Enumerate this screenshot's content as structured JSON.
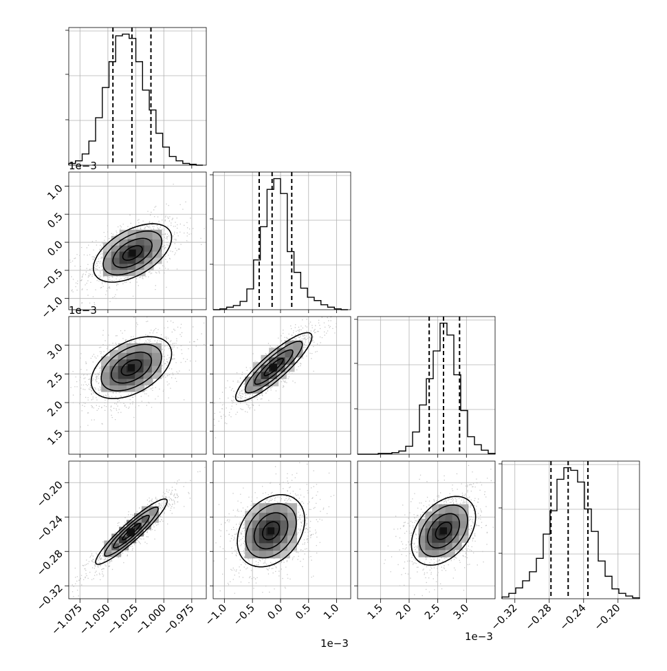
{
  "chart_data": {
    "type": "corner",
    "params": [
      {
        "range": [
          -1.085,
          -0.962
        ],
        "ticks": [
          -1.075,
          -1.05,
          -1.025,
          -1.0,
          -0.975
        ],
        "tick_labels": [
          "−1.075",
          "−1.050",
          "−1.025",
          "−1.000",
          "−0.975"
        ],
        "offset_label": ""
      },
      {
        "range": [
          -1.2,
          1.25
        ],
        "ticks": [
          -1.0,
          -0.5,
          0.0,
          0.5,
          1.0
        ],
        "tick_labels": [
          "−1.0",
          "−0.5",
          "0.0",
          "0.5",
          "1.0"
        ],
        "offset_label": "1e−3"
      },
      {
        "range": [
          1.1,
          3.5
        ],
        "ticks": [
          1.5,
          2.0,
          2.5,
          3.0
        ],
        "tick_labels": [
          "1.5",
          "2.0",
          "2.5",
          "3.0"
        ],
        "offset_label": "1e−3"
      },
      {
        "range": [
          -0.335,
          -0.175
        ],
        "ticks": [
          -0.32,
          -0.28,
          -0.24,
          -0.2
        ],
        "tick_labels": [
          "−0.32",
          "−0.28",
          "−0.24",
          "−0.20"
        ],
        "offset_label": ""
      }
    ],
    "quantiles": [
      [
        -1.0455,
        -1.0285,
        -1.0115
      ],
      [
        -0.38,
        -0.15,
        0.2
      ],
      [
        2.35,
        2.6,
        2.88
      ],
      [
        -0.278,
        -0.258,
        -0.235
      ]
    ],
    "histograms": [
      {
        "bin_edges": [
          -1.085,
          -1.079,
          -1.073,
          -1.067,
          -1.061,
          -1.055,
          -1.049,
          -1.043,
          -1.037,
          -1.031,
          -1.025,
          -1.019,
          -1.013,
          -1.007,
          -1.001,
          -0.995,
          -0.989,
          -0.983,
          -0.977,
          -0.971,
          -0.965
        ],
        "counts": [
          2,
          5,
          13,
          28,
          55,
          90,
          120,
          150,
          152,
          147,
          120,
          87,
          64,
          37,
          21,
          10,
          5,
          2,
          1,
          0
        ]
      },
      {
        "bin_edges": [
          -1.2,
          -1.08,
          -0.96,
          -0.84,
          -0.72,
          -0.6,
          -0.48,
          -0.36,
          -0.24,
          -0.12,
          0.0,
          0.12,
          0.24,
          0.36,
          0.48,
          0.6,
          0.72,
          0.84,
          0.96,
          1.08,
          1.2
        ],
        "counts": [
          0,
          1,
          3,
          5,
          10,
          25,
          60,
          100,
          145,
          158,
          140,
          70,
          45,
          26,
          15,
          11,
          6,
          3,
          1,
          0
        ]
      },
      {
        "bin_edges": [
          1.1,
          1.22,
          1.34,
          1.46,
          1.58,
          1.7,
          1.82,
          1.94,
          2.06,
          2.18,
          2.3,
          2.42,
          2.54,
          2.66,
          2.78,
          2.9,
          3.02,
          3.14,
          3.26,
          3.38,
          3.5
        ],
        "counts": [
          0,
          0,
          0,
          1,
          1,
          2,
          4,
          10,
          28,
          62,
          95,
          130,
          165,
          150,
          100,
          55,
          22,
          12,
          5,
          1
        ]
      },
      {
        "bin_edges": [
          -0.335,
          -0.327,
          -0.319,
          -0.311,
          -0.303,
          -0.295,
          -0.287,
          -0.279,
          -0.271,
          -0.263,
          -0.255,
          -0.247,
          -0.239,
          -0.231,
          -0.223,
          -0.215,
          -0.207,
          -0.199,
          -0.191,
          -0.183,
          -0.175
        ],
        "counts": [
          2,
          6,
          12,
          20,
          30,
          45,
          72,
          98,
          133,
          146,
          143,
          130,
          100,
          75,
          42,
          25,
          11,
          6,
          3,
          1
        ]
      }
    ],
    "pairs": [
      {
        "row": 1,
        "col": 0,
        "mean": [
          -1.028,
          -0.19
        ],
        "sd": [
          0.0175,
          0.26
        ],
        "corr": 0.52
      },
      {
        "row": 2,
        "col": 0,
        "mean": [
          -1.029,
          2.61
        ],
        "sd": [
          0.018,
          0.27
        ],
        "corr": 0.45
      },
      {
        "row": 2,
        "col": 1,
        "mean": [
          -0.12,
          2.62
        ],
        "sd": [
          0.34,
          0.3
        ],
        "corr": 0.88
      },
      {
        "row": 3,
        "col": 0,
        "mean": [
          -1.029,
          -0.257
        ],
        "sd": [
          0.016,
          0.019
        ],
        "corr": 0.93
      },
      {
        "row": 3,
        "col": 1,
        "mean": [
          -0.17,
          -0.256
        ],
        "sd": [
          0.3,
          0.021
        ],
        "corr": 0.3
      },
      {
        "row": 3,
        "col": 2,
        "mean": [
          2.6,
          -0.256
        ],
        "sd": [
          0.28,
          0.02
        ],
        "corr": 0.4
      }
    ],
    "contour_levels_sigma": [
      0.5,
      1.0,
      1.5,
      2.0
    ],
    "grid": true,
    "title": "",
    "xlabel": "",
    "ylabel": ""
  }
}
